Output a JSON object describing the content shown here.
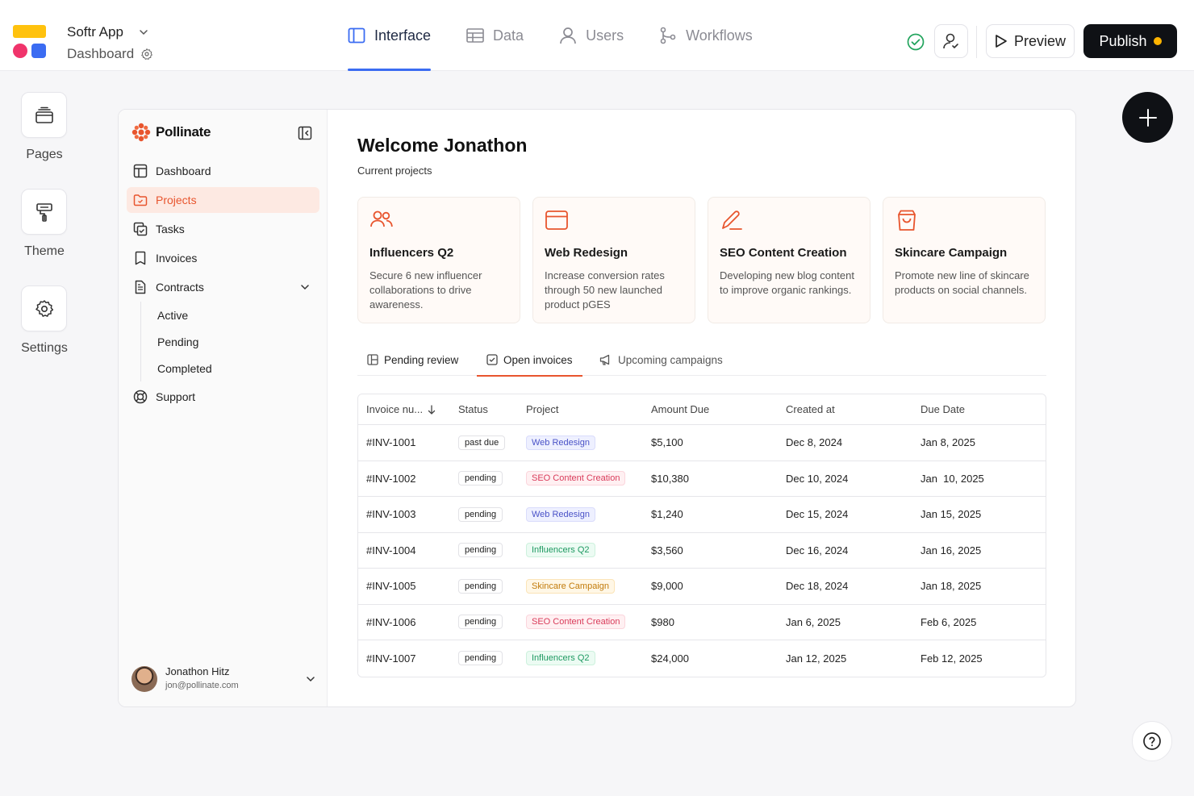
{
  "topbar": {
    "app_name": "Softr App",
    "app_page": "Dashboard",
    "nav": [
      {
        "label": "Interface",
        "icon": "layout-icon",
        "active": true
      },
      {
        "label": "Data",
        "icon": "table-icon",
        "active": false
      },
      {
        "label": "Users",
        "icon": "user-icon",
        "active": false
      },
      {
        "label": "Workflows",
        "icon": "workflow-icon",
        "active": false
      }
    ],
    "preview_label": "Preview",
    "publish_label": "Publish"
  },
  "rail": {
    "items": [
      {
        "label": "Pages",
        "icon": "pages-icon"
      },
      {
        "label": "Theme",
        "icon": "paint-roller-icon"
      },
      {
        "label": "Settings",
        "icon": "gear-icon"
      }
    ]
  },
  "app": {
    "brand": "Pollinate",
    "menu": [
      {
        "label": "Dashboard",
        "icon": "dashboard-icon"
      },
      {
        "label": "Projects",
        "icon": "folder-icon",
        "active": true
      },
      {
        "label": "Tasks",
        "icon": "tasks-icon"
      },
      {
        "label": "Invoices",
        "icon": "bookmark-icon"
      },
      {
        "label": "Contracts",
        "icon": "file-icon",
        "expandable": true
      },
      {
        "label": "Support",
        "icon": "lifebuoy-icon"
      }
    ],
    "contracts_submenu": [
      "Active",
      "Pending",
      "Completed"
    ],
    "user": {
      "name": "Jonathon Hitz",
      "email": "jon@pollinate.com"
    }
  },
  "main": {
    "welcome": "Welcome Jonathon",
    "subtitle": "Current projects",
    "cards": [
      {
        "title": "Influencers Q2",
        "desc": "Secure 6 new influencer collaborations to drive awareness.",
        "icon": "users-icon"
      },
      {
        "title": "Web Redesign",
        "desc": "Increase conversion rates through 50 new launched product pGES",
        "icon": "browser-icon"
      },
      {
        "title": "SEO Content Creation",
        "desc": "Developing new blog content to improve organic rankings.",
        "icon": "pen-icon"
      },
      {
        "title": "Skincare Campaign",
        "desc": "Promote new line of skincare products on social channels.",
        "icon": "shopping-bag-icon"
      }
    ],
    "tabs": [
      {
        "label": "Pending review",
        "icon": "layout-icon"
      },
      {
        "label": "Open invoices",
        "icon": "checkbox-icon",
        "active": true
      },
      {
        "label": "Upcoming campaigns",
        "icon": "megaphone-icon"
      }
    ],
    "table": {
      "headers": [
        "Invoice nu...",
        "Status",
        "Project",
        "Amount Due",
        "Created at",
        "Due Date"
      ],
      "rows": [
        {
          "invoice": "#INV-1001",
          "status": "past due",
          "project": "Web Redesign",
          "amount": "$5,100",
          "created": "Dec 8, 2024",
          "due": "Jan 8, 2025"
        },
        {
          "invoice": "#INV-1002",
          "status": "pending",
          "project": "SEO Content Creation",
          "amount": "$10,380",
          "created": "Dec 10, 2024",
          "due": "Jan  10, 2025"
        },
        {
          "invoice": "#INV-1003",
          "status": "pending",
          "project": "Web Redesign",
          "amount": "$1,240",
          "created": "Dec 15, 2024",
          "due": "Jan 15, 2025"
        },
        {
          "invoice": "#INV-1004",
          "status": "pending",
          "project": "Influencers Q2",
          "amount": "$3,560",
          "created": "Dec 16, 2024",
          "due": "Jan 16, 2025"
        },
        {
          "invoice": "#INV-1005",
          "status": "pending",
          "project": "Skincare Campaign",
          "amount": "$9,000",
          "created": "Dec 18, 2024",
          "due": "Jan 18, 2025"
        },
        {
          "invoice": "#INV-1006",
          "status": "pending",
          "project": "SEO Content Creation",
          "amount": "$980",
          "created": "Jan 6, 2025",
          "due": "Feb 6, 2025"
        },
        {
          "invoice": "#INV-1007",
          "status": "pending",
          "project": "Influencers Q2",
          "amount": "$24,000",
          "created": "Jan 12, 2025",
          "due": "Feb 12, 2025"
        }
      ]
    }
  },
  "colors": {
    "accent": "#e8552e",
    "brand_blue": "#3b6cf2",
    "publish_bg": "#0f1115",
    "status_ok": "#22a45d"
  }
}
